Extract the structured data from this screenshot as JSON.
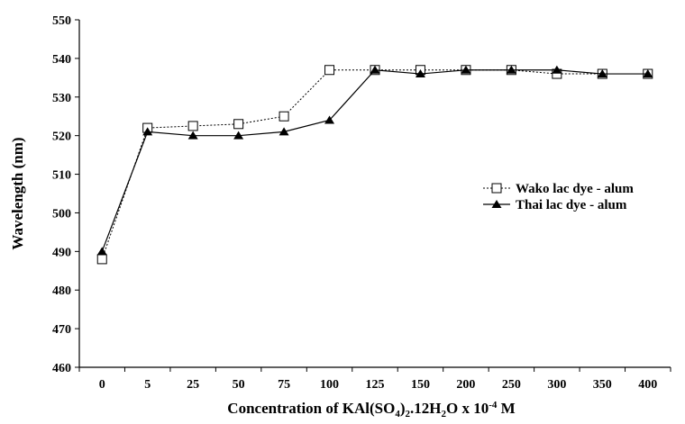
{
  "chart_data": {
    "type": "line",
    "title": "",
    "xlabel": "Concentration of KAl(SO4)2.12H2O x 10-4 M",
    "xlabel_parts": {
      "a": "Concentration of KAl(SO",
      "sub1": "4",
      "b": ")",
      "sub2": "2",
      "c": ".12H",
      "sub3": "2",
      "d": "O x 10",
      "sup": "-4",
      "e": " M"
    },
    "ylabel": "Wavelength (nm)",
    "ylim": [
      460,
      550
    ],
    "yticks": [
      "460",
      "470",
      "480",
      "490",
      "500",
      "510",
      "520",
      "530",
      "540",
      "550"
    ],
    "categories": [
      "0",
      "5",
      "25",
      "50",
      "75",
      "100",
      "125",
      "150",
      "200",
      "250",
      "300",
      "350",
      "400"
    ],
    "grid": false,
    "legend_position": "right",
    "series": [
      {
        "name": "Wako lac dye - alum",
        "marker": "open-square",
        "line": "dotted",
        "values": [
          488,
          522,
          522.5,
          523,
          525,
          537,
          537,
          537,
          537,
          537,
          536,
          536,
          536
        ]
      },
      {
        "name": "Thai lac dye - alum",
        "marker": "filled-triangle",
        "line": "solid",
        "values": [
          490,
          521,
          520,
          520,
          521,
          524,
          537,
          536,
          537,
          537,
          537,
          536,
          536
        ]
      }
    ]
  }
}
